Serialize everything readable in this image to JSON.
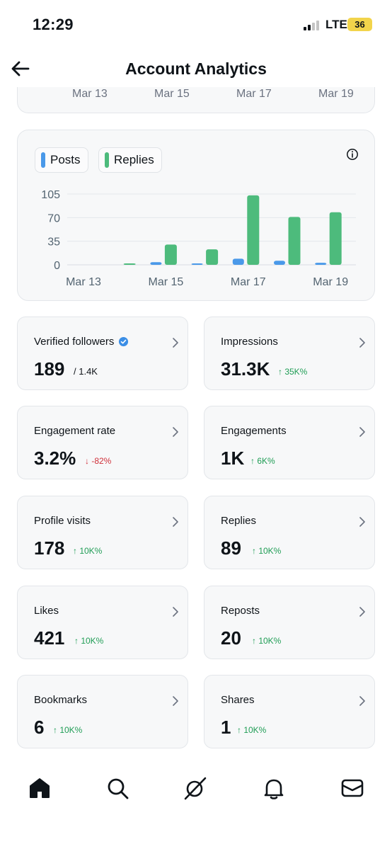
{
  "status_bar": {
    "time": "12:29",
    "network": "LTE",
    "battery": "36"
  },
  "header": {
    "title": "Account Analytics"
  },
  "top_chart": {
    "dates": [
      "Mar 13",
      "Mar 15",
      "Mar 17",
      "Mar 19"
    ]
  },
  "chart_data": {
    "type": "bar",
    "legend": [
      {
        "name": "Posts",
        "color": "#4a99e9"
      },
      {
        "name": "Replies",
        "color": "#4dbb7c"
      }
    ],
    "categories": [
      "Mar 13",
      "Mar 14",
      "Mar 15",
      "Mar 16",
      "Mar 17",
      "Mar 18",
      "Mar 19"
    ],
    "series": [
      {
        "name": "Posts",
        "values": [
          0,
          0,
          4,
          2,
          9,
          6,
          3
        ]
      },
      {
        "name": "Replies",
        "values": [
          0,
          1,
          30,
          23,
          103,
          71,
          78
        ]
      }
    ],
    "y_ticks": [
      "105",
      "70",
      "35",
      "0"
    ],
    "y_tick_values": [
      105,
      70,
      35,
      0
    ],
    "x_tick_labels": [
      "Mar 13",
      "Mar 15",
      "Mar 17",
      "Mar 19"
    ],
    "x_tick_categories": [
      "Mar 13",
      "Mar 15",
      "Mar 17",
      "Mar 19"
    ],
    "ylim": [
      0,
      105
    ],
    "grid": true
  },
  "stats": [
    {
      "label": "Verified followers",
      "value": "189",
      "extra": "/ 1.4K",
      "verified": true
    },
    {
      "label": "Impressions",
      "value": "31.3K",
      "change": "↑ 35K%",
      "direction": "up"
    },
    {
      "label": "Engagement rate",
      "value": "3.2%",
      "change": "↓ -82%",
      "direction": "down"
    },
    {
      "label": "Engagements",
      "value": "1K",
      "change": "↑ 6K%",
      "direction": "up"
    },
    {
      "label": "Profile visits",
      "value": "178",
      "change": "↑ 10K%",
      "direction": "up"
    },
    {
      "label": "Replies",
      "value": "89",
      "change": "↑ 10K%",
      "direction": "up"
    },
    {
      "label": "Likes",
      "value": "421",
      "change": "↑ 10K%",
      "direction": "up"
    },
    {
      "label": "Reposts",
      "value": "20",
      "change": "↑ 10K%",
      "direction": "up"
    },
    {
      "label": "Bookmarks",
      "value": "6",
      "change": "↑ 10K%",
      "direction": "up"
    },
    {
      "label": "Shares",
      "value": "1",
      "change": "↑ 10K%",
      "direction": "up"
    }
  ],
  "tabs": [
    {
      "icon": "home-icon"
    },
    {
      "icon": "search-icon"
    },
    {
      "icon": "grok-icon"
    },
    {
      "icon": "bell-icon"
    },
    {
      "icon": "mail-icon"
    }
  ]
}
